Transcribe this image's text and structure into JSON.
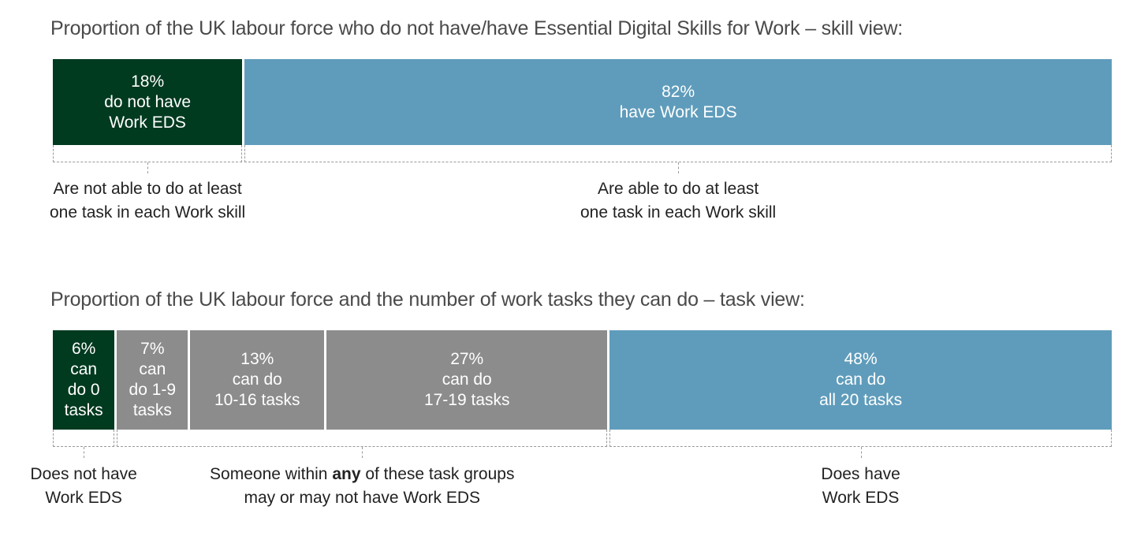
{
  "chart_data": [
    {
      "type": "bar",
      "orientation": "horizontal-stacked",
      "title": "Proportion of the UK labour force who do not have/have Essential Digital Skills for Work – skill view:",
      "categories": [
        "do not have Work EDS",
        "have Work EDS"
      ],
      "values": [
        18,
        82
      ],
      "unit": "%",
      "segment_labels": [
        {
          "value": "18%",
          "text": "do not have\nWork EDS"
        },
        {
          "value": "82%",
          "text": "have Work EDS"
        }
      ],
      "colors": [
        "#003a1f",
        "#5f9cbb"
      ],
      "brackets": [
        {
          "text": "Are not able to do at least\none task in each Work skill"
        },
        {
          "text": "Are able to do at least\none task in each Work skill"
        }
      ]
    },
    {
      "type": "bar",
      "orientation": "horizontal-stacked",
      "title": "Proportion of the UK labour force and the number of work tasks they can do – task view:",
      "categories": [
        "can do 0 tasks",
        "can do 1-9 tasks",
        "can do 10-16 tasks",
        "can do 17-19 tasks",
        "can do all 20 tasks"
      ],
      "values": [
        6,
        7,
        13,
        27,
        48
      ],
      "unit": "%",
      "segment_labels": [
        {
          "value": "6%",
          "text": "can\ndo 0\ntasks"
        },
        {
          "value": "7%",
          "text": "can\ndo 1-9\ntasks"
        },
        {
          "value": "13%",
          "text": "can do\n10-16 tasks"
        },
        {
          "value": "27%",
          "text": "can do\n17-19 tasks"
        },
        {
          "value": "48%",
          "text": "can do\nall 20 tasks"
        }
      ],
      "colors": [
        "#003a1f",
        "#8c8c8c",
        "#8c8c8c",
        "#8c8c8c",
        "#5f9cbb"
      ],
      "brackets": [
        {
          "text": "Does not have\nWork EDS",
          "from": 0,
          "to": 0
        },
        {
          "text_before": "Someone within ",
          "text_bold": "any",
          "text_after": " of these task groups\nmay or may not have Work EDS",
          "from": 1,
          "to": 3
        },
        {
          "text": "Does have\nWork EDS",
          "from": 4,
          "to": 4
        }
      ]
    }
  ]
}
